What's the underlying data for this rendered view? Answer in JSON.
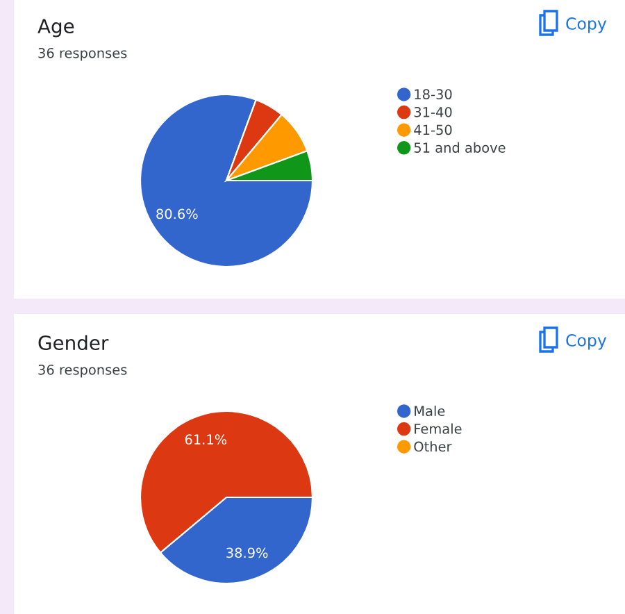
{
  "chart_data": [
    {
      "type": "pie",
      "title": "Age",
      "subtitle": "36 responses",
      "annotations": [
        "Copy"
      ],
      "legend": "right",
      "categories": [
        "18-30",
        "31-40",
        "41-50",
        "51 and above"
      ],
      "values": [
        80.6,
        5.5,
        8.3,
        5.6
      ],
      "value_labels": [
        "80.6%",
        null,
        null,
        null
      ],
      "colors": [
        "#3366cc",
        "#dc3912",
        "#ff9900",
        "#109618"
      ]
    },
    {
      "type": "pie",
      "title": "Gender",
      "subtitle": "36 responses",
      "annotations": [
        "Copy"
      ],
      "legend": "right",
      "categories": [
        "Male",
        "Female",
        "Other"
      ],
      "values": [
        38.9,
        61.1,
        0
      ],
      "value_labels": [
        "38.9%",
        "61.1%",
        null
      ],
      "colors": [
        "#3366cc",
        "#dc3912",
        "#ff9900"
      ]
    }
  ]
}
